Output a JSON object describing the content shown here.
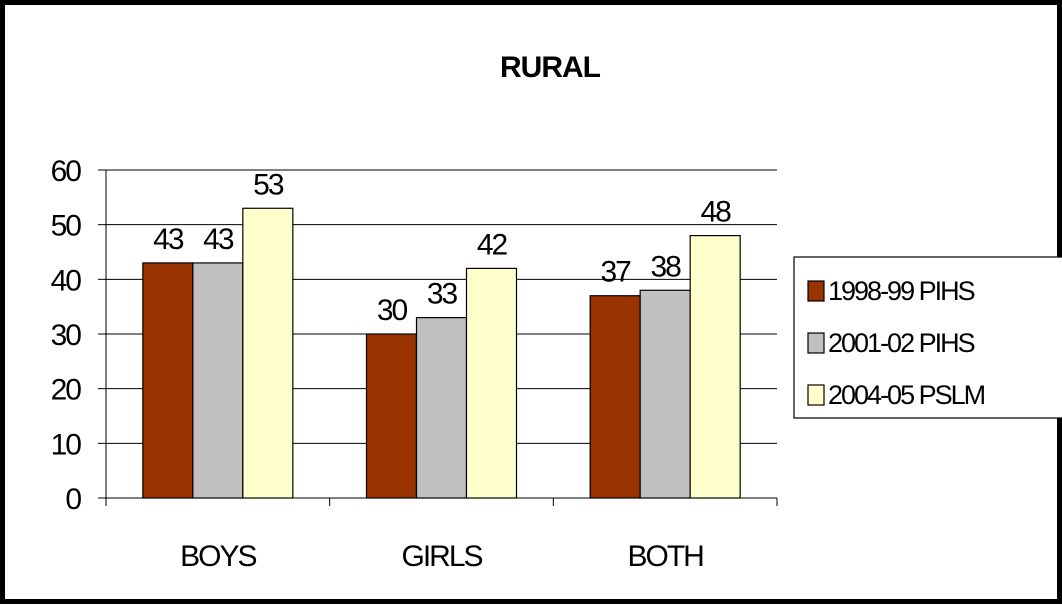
{
  "chart_data": {
    "type": "bar",
    "title": "RURAL",
    "xlabel": "",
    "ylabel": "",
    "categories": [
      "BOYS",
      "GIRLS",
      "BOTH"
    ],
    "series": [
      {
        "name": "1998-99 PIHS",
        "values": [
          43,
          30,
          37
        ],
        "color": "#993300"
      },
      {
        "name": "2001-02 PIHS",
        "values": [
          43,
          33,
          38
        ],
        "color": "#c0c0c0"
      },
      {
        "name": "2004-05 PSLM",
        "values": [
          53,
          42,
          48
        ],
        "color": "#ffffcc"
      }
    ],
    "ylim": [
      0,
      60
    ],
    "yticks": [
      0,
      10,
      20,
      30,
      40,
      50,
      60
    ],
    "grid": true,
    "legend": "right",
    "data_labels": true
  }
}
